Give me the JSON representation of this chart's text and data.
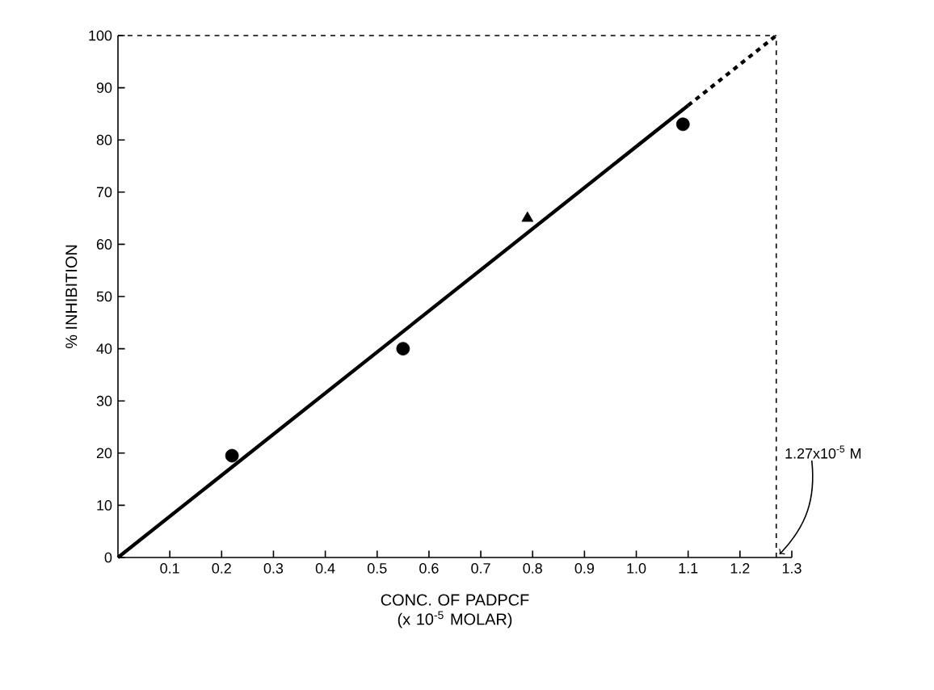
{
  "chart_data": {
    "type": "scatter",
    "xlabel": "CONC. OF PADPCF (x 10$^{-5}$ MOLAR)",
    "ylabel": "% INHIBITION",
    "xlim": [
      0,
      1.3
    ],
    "ylim": [
      0,
      100
    ],
    "xticks": [
      0.1,
      0.2,
      0.3,
      0.4,
      0.5,
      0.6,
      0.7,
      0.8,
      0.9,
      {
        "value": 1.0,
        "label": "1.0"
      },
      1.1,
      1.2,
      1.3
    ],
    "yticks": [
      0,
      10,
      20,
      30,
      40,
      50,
      60,
      70,
      80,
      90,
      100
    ],
    "grid": false,
    "series": [
      {
        "marker": "circle",
        "color": "#000000",
        "x": [
          0.22,
          0.55,
          1.09
        ],
        "values": [
          19.5,
          40,
          83
        ]
      },
      {
        "marker": "triangle",
        "color": "#000000",
        "x": [
          0.79
        ],
        "values": [
          65
        ]
      },
      {
        "type": "line",
        "marker": "none",
        "line_style": "solid",
        "color": "#000000",
        "x": [
          0,
          1.1
        ],
        "values": [
          0,
          86.6
        ]
      },
      {
        "type": "line",
        "marker": "none",
        "line_style": "dashed",
        "color": "#000000",
        "x": [
          1.1,
          1.27
        ],
        "values": [
          86.6,
          100
        ]
      }
    ],
    "ref_lines": [
      {
        "axis": "y",
        "value": 100,
        "line_style": "dashed",
        "color": "#000000"
      },
      {
        "axis": "x",
        "value": 1.27,
        "line_style": "dashed",
        "color": "#000000"
      }
    ],
    "annotations": [
      {
        "text": "1.27x10$^{-5}$ M",
        "x": 1.27,
        "y": 0
      }
    ]
  }
}
